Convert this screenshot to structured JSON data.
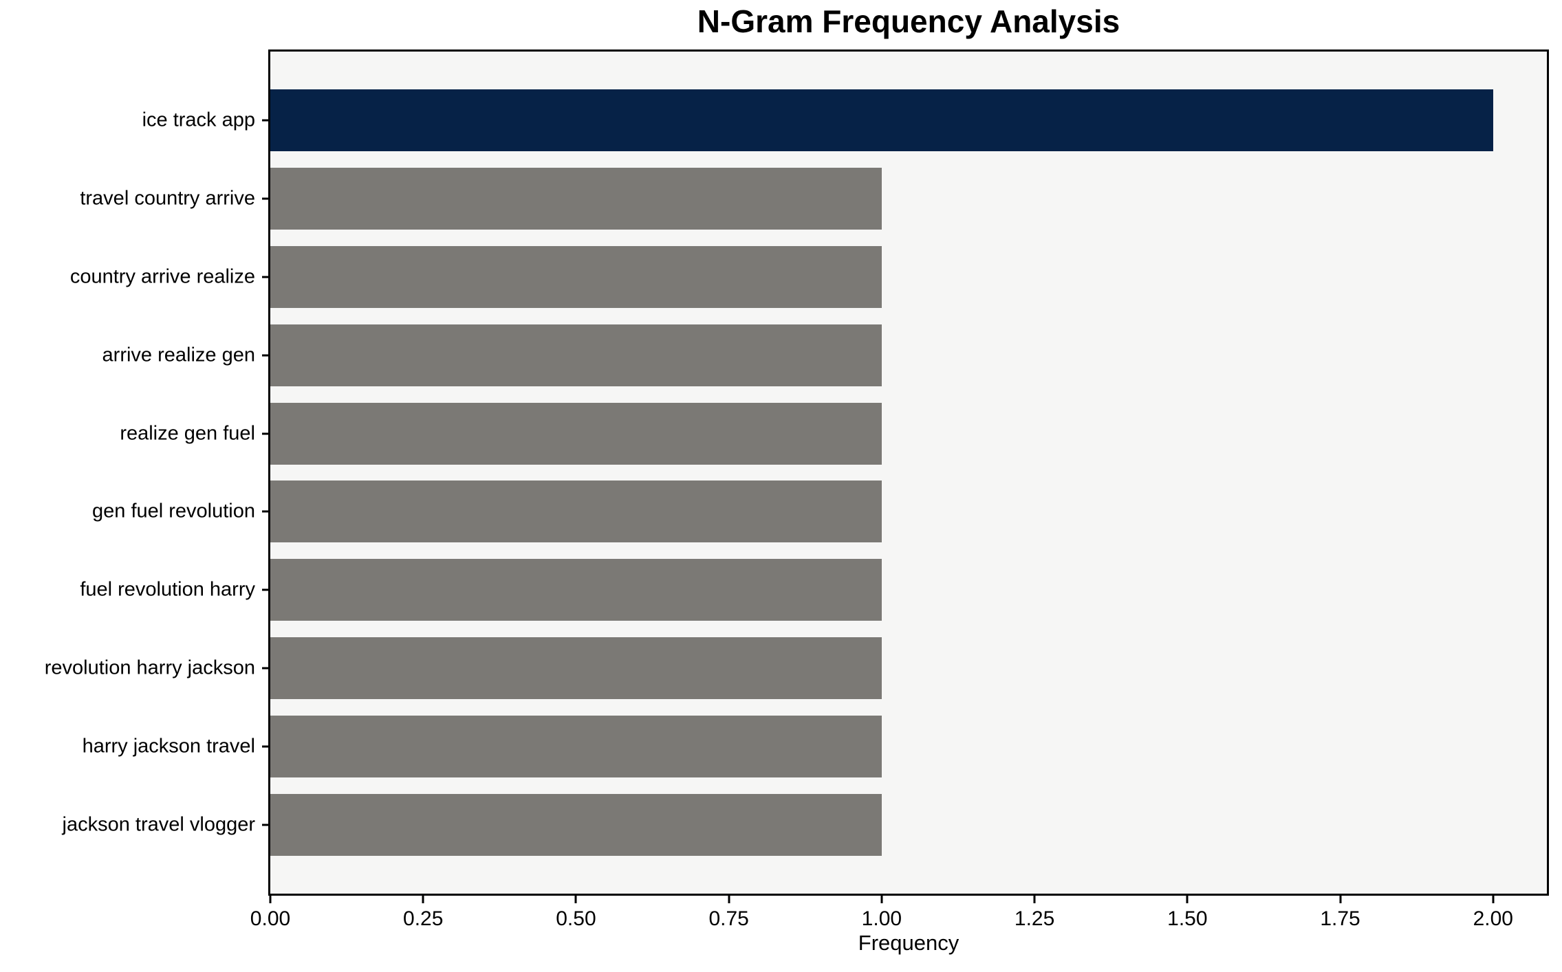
{
  "chart": {
    "title": "N-Gram Frequency Analysis",
    "xlabel": "Frequency"
  },
  "chart_data": {
    "type": "bar",
    "orientation": "horizontal",
    "title": "N-Gram Frequency Analysis",
    "xlabel": "Frequency",
    "ylabel": "",
    "categories": [
      "ice track app",
      "travel country arrive",
      "country arrive realize",
      "arrive realize gen",
      "realize gen fuel",
      "gen fuel revolution",
      "fuel revolution harry",
      "revolution harry jackson",
      "harry jackson travel",
      "jackson travel vlogger"
    ],
    "values": [
      2,
      1,
      1,
      1,
      1,
      1,
      1,
      1,
      1,
      1
    ],
    "bar_colors": [
      "#062247",
      "#7b7975",
      "#7b7975",
      "#7b7975",
      "#7b7975",
      "#7b7975",
      "#7b7975",
      "#7b7975",
      "#7b7975",
      "#7b7975"
    ],
    "highlight_color": "#062247",
    "default_color": "#7b7975",
    "x_ticks": [
      "0.00",
      "0.25",
      "0.50",
      "0.75",
      "1.00",
      "1.25",
      "1.50",
      "1.75",
      "2.00"
    ],
    "x_tick_values": [
      0,
      0.25,
      0.5,
      0.75,
      1.0,
      1.25,
      1.5,
      1.75,
      2.0
    ],
    "xlim": [
      0,
      2.088
    ],
    "grid": false,
    "legend": false,
    "plot_background": "#f6f6f5",
    "figure_background": "#ffffff"
  }
}
